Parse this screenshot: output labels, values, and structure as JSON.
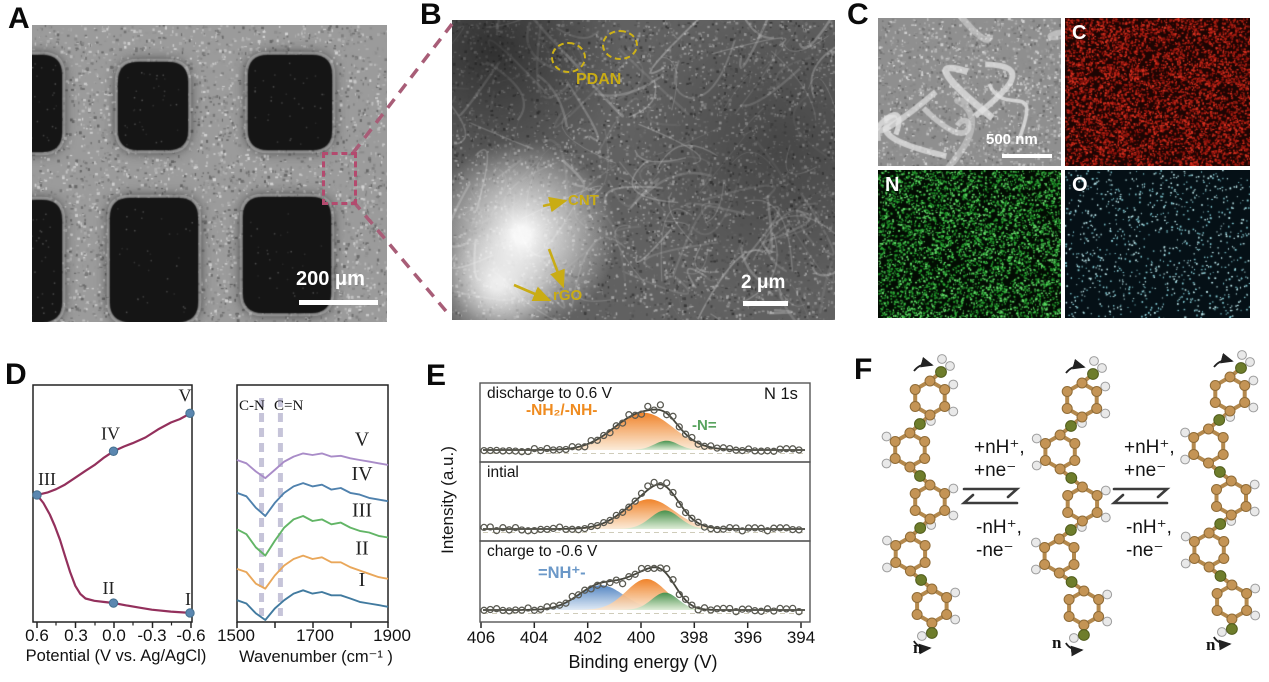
{
  "panels": {
    "a": {
      "label": "A",
      "scale_bar": "200 μm"
    },
    "b": {
      "label": "B",
      "pdan": "PDAN",
      "cnt": "CNT",
      "rgo": "rGO",
      "scale_bar": "2 μm"
    },
    "c": {
      "label": "C",
      "scale_bar": "500 nm",
      "map_labels": [
        "C",
        "N",
        "O"
      ]
    },
    "d": {
      "label": "D"
    },
    "e": {
      "label": "E"
    },
    "f": {
      "label": "F",
      "forward": [
        "+nH⁺,",
        "+ne⁻"
      ],
      "reverse": [
        "-nH⁺,",
        "-ne⁻"
      ],
      "repeat": "n"
    }
  },
  "colors": {
    "curve_maroon": "#93305c",
    "marker_blue": "#5b87b0",
    "annotation_yellow": "#c9ac14",
    "connector_pink": "#a85d77",
    "box_pink": "#b34a6e",
    "band_gray": "#c6c4d9",
    "xps_orange": "#ef7d1f",
    "xps_green": "#3f8f4a",
    "xps_blue": "#4b7fc0",
    "label_orange": "#ef8b1f",
    "label_green": "#58a35e",
    "label_blue": "#6b98c8",
    "map_c_color": "#d93020",
    "map_n_color": "#2fae3a",
    "map_o_color": "#c2eef2"
  },
  "chart_data": [
    {
      "type": "line",
      "xlabel": "Potential (V vs. Ag/AgCl)",
      "xticks": [
        "0.6",
        "0.3",
        "0.0",
        "-0.3",
        "-0.6"
      ],
      "x_range": [
        0.6,
        -0.6
      ],
      "ylim": [
        0,
        100
      ],
      "grid": false,
      "series": [
        {
          "name": "upper_branch",
          "points": [
            [
              0.6,
              53.5
            ],
            [
              0.52,
              54.5
            ],
            [
              0.45,
              56
            ],
            [
              0.38,
              58
            ],
            [
              0.3,
              61
            ],
            [
              0.22,
              64
            ],
            [
              0.15,
              66.5
            ],
            [
              0.08,
              69.5
            ],
            [
              0.0,
              72.5
            ],
            [
              -0.08,
              74.5
            ],
            [
              -0.15,
              76
            ],
            [
              -0.25,
              78.5
            ],
            [
              -0.35,
              82
            ],
            [
              -0.45,
              85
            ],
            [
              -0.52,
              86.5
            ],
            [
              -0.57,
              88
            ],
            [
              -0.6,
              89
            ]
          ]
        },
        {
          "name": "lower_branch",
          "points": [
            [
              0.6,
              53.5
            ],
            [
              0.55,
              50
            ],
            [
              0.5,
              45
            ],
            [
              0.46,
              40
            ],
            [
              0.42,
              34
            ],
            [
              0.38,
              27
            ],
            [
              0.34,
              20
            ],
            [
              0.3,
              14
            ],
            [
              0.26,
              10.5
            ],
            [
              0.22,
              8.5
            ],
            [
              0.15,
              7.5
            ],
            [
              0.08,
              7
            ],
            [
              0.0,
              6.5
            ],
            [
              -0.1,
              5.5
            ],
            [
              -0.2,
              4.5
            ],
            [
              -0.3,
              3.6
            ],
            [
              -0.45,
              2.8
            ],
            [
              -0.6,
              2.2
            ]
          ]
        }
      ],
      "marked_points": [
        {
          "label": "I",
          "x": -0.6,
          "y": 2.2
        },
        {
          "label": "II",
          "x": 0.0,
          "y": 6.5
        },
        {
          "label": "III",
          "x": 0.6,
          "y": 53.5
        },
        {
          "label": "IV",
          "x": 0.0,
          "y": 72.5
        },
        {
          "label": "V",
          "x": -0.6,
          "y": 89
        }
      ]
    },
    {
      "type": "line",
      "xlabel": "Wavenumber (cm⁻¹ )",
      "xticks": [
        "1500",
        "1700",
        "1900"
      ],
      "x_start": 1500,
      "x_step": 25,
      "band_labels": [
        "C-N",
        "C=N"
      ],
      "band_positions": [
        1565,
        1615
      ],
      "series": [
        {
          "name": "V",
          "color": "#a98cc8",
          "offset": 93,
          "values": [
            4,
            2,
            -3,
            -7,
            -2,
            3,
            6,
            8,
            7,
            8,
            6,
            6.5,
            5,
            4,
            3,
            2,
            1
          ]
        },
        {
          "name": "IV",
          "color": "#4f81ad",
          "offset": 72,
          "values": [
            5,
            3,
            -4,
            -9,
            -1,
            5,
            9,
            11,
            9,
            10,
            7,
            8,
            5,
            4,
            2,
            1,
            0
          ]
        },
        {
          "name": "III",
          "color": "#62b566",
          "offset": 50,
          "values": [
            5,
            2,
            -6,
            -11,
            -2,
            6,
            11,
            13,
            10,
            11,
            8,
            9,
            6,
            4,
            3,
            1,
            0
          ]
        },
        {
          "name": "II",
          "color": "#e9a75a",
          "offset": 27,
          "values": [
            4,
            2,
            -5,
            -8,
            0,
            6,
            10,
            12,
            10,
            11,
            8,
            8,
            5,
            3,
            1,
            -1,
            -2
          ]
        },
        {
          "name": "I",
          "color": "#417a9f",
          "offset": 8,
          "values": [
            4,
            2,
            -4,
            -8,
            -1,
            4,
            8,
            10,
            8,
            9,
            7,
            7,
            5,
            3,
            2,
            1,
            0
          ]
        }
      ]
    },
    {
      "type": "area",
      "corner_label": "N 1s",
      "ylabel": "Intensity (a.u.)",
      "xlabel": "Binding energy (V)",
      "xticks": [
        "406",
        "404",
        "402",
        "400",
        "398",
        "396",
        "394"
      ],
      "x_range": [
        406,
        394
      ],
      "panels": [
        {
          "title": "discharge to 0.6 V",
          "peaks": [
            {
              "name": "-NH₂/-NH-",
              "color": "orange",
              "center": 399.9,
              "sigma": 1.1,
              "amp": 60
            },
            {
              "name": "-N=",
              "color": "green",
              "center": 399.05,
              "sigma": 0.45,
              "amp": 15
            }
          ]
        },
        {
          "title": "intial",
          "peaks": [
            {
              "color": "orange",
              "center": 399.7,
              "sigma": 0.95,
              "amp": 48
            },
            {
              "color": "green",
              "center": 399.1,
              "sigma": 0.55,
              "amp": 30
            }
          ]
        },
        {
          "title": "charge to -0.6 V",
          "peaks": [
            {
              "name": "=NH⁺-",
              "color": "blue",
              "center": 401.5,
              "sigma": 0.85,
              "amp": 40
            },
            {
              "color": "orange",
              "center": 399.8,
              "sigma": 0.75,
              "amp": 50
            },
            {
              "color": "green",
              "center": 399.1,
              "sigma": 0.5,
              "amp": 28
            }
          ]
        }
      ]
    }
  ]
}
